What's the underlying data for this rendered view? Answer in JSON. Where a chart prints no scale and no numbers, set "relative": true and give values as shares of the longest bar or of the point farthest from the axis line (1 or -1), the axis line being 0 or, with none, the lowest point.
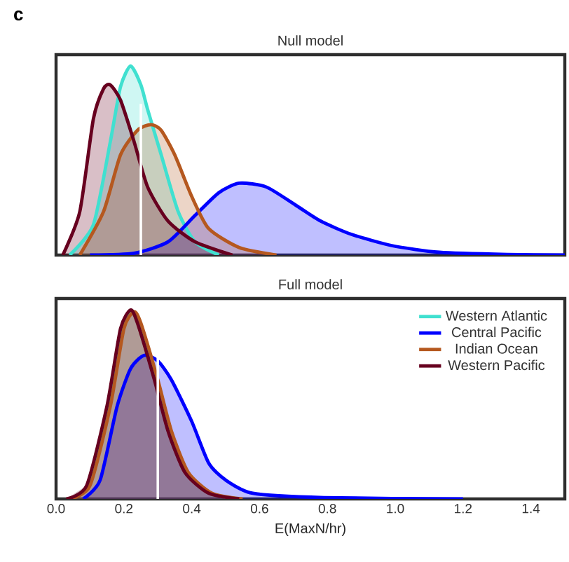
{
  "chart_data": [
    {
      "type": "area",
      "title": "Null model",
      "annotations": [
        "c"
      ],
      "relative": true,
      "xlim": [
        0,
        1.5
      ],
      "tick_labels": false,
      "ref_lines": [
        {
          "axis": "x",
          "value": 0.25,
          "color": "#ffffff"
        }
      ],
      "series": [
        {
          "color": "#40e0d0",
          "x": [
            0.04,
            0.11,
            0.16,
            0.19,
            0.22,
            0.25,
            0.27,
            0.31,
            0.36,
            0.41,
            0.48
          ],
          "values": [
            0,
            0.16,
            0.6,
            0.89,
            1.0,
            0.9,
            0.77,
            0.53,
            0.23,
            0.07,
            0
          ]
        },
        {
          "color": "#0000ff",
          "x": [
            0.1,
            0.23,
            0.33,
            0.41,
            0.48,
            0.54,
            0.62,
            0.71,
            0.78,
            0.87,
            0.99,
            1.13,
            1.33,
            1.5
          ],
          "values": [
            0,
            0.01,
            0.07,
            0.21,
            0.33,
            0.38,
            0.36,
            0.26,
            0.18,
            0.11,
            0.05,
            0.015,
            0.003,
            0
          ]
        },
        {
          "color": "#b5581f",
          "x": [
            0.07,
            0.14,
            0.19,
            0.24,
            0.28,
            0.31,
            0.35,
            0.4,
            0.45,
            0.54,
            0.65
          ],
          "values": [
            0,
            0.23,
            0.53,
            0.66,
            0.69,
            0.66,
            0.53,
            0.31,
            0.14,
            0.04,
            0
          ]
        },
        {
          "color": "#67001f",
          "x": [
            0.02,
            0.07,
            0.11,
            0.14,
            0.16,
            0.19,
            0.23,
            0.27,
            0.33,
            0.41,
            0.52
          ],
          "values": [
            0,
            0.23,
            0.72,
            0.88,
            0.9,
            0.82,
            0.6,
            0.36,
            0.18,
            0.07,
            0
          ]
        }
      ]
    },
    {
      "type": "area",
      "title": "Full model",
      "xlabel": "E(MaxN/hr)",
      "relative": true,
      "xlim": [
        0,
        1.5
      ],
      "xticks": [
        {
          "value": 0,
          "label": "0.0"
        },
        0.2,
        0.4,
        0.6,
        0.8,
        {
          "value": 1,
          "label": "1.0"
        },
        1.2,
        1.4
      ],
      "tick_labels": "x",
      "legend": "top right",
      "ref_lines": [
        {
          "axis": "x",
          "value": 0.3,
          "color": "#ffffff"
        }
      ],
      "series": [
        {
          "name": "Western Atlantic",
          "color": "#40e0d0",
          "x": [
            0.035,
            0.095,
            0.155,
            0.195,
            0.225,
            0.245,
            0.295,
            0.335,
            0.385,
            0.455,
            0.545
          ],
          "values": [
            0,
            0.07,
            0.49,
            0.9,
            0.99,
            0.92,
            0.63,
            0.36,
            0.14,
            0.03,
            0
          ]
        },
        {
          "name": "Central Pacific",
          "color": "#0000ff",
          "x": [
            0.08,
            0.13,
            0.18,
            0.22,
            0.26,
            0.3,
            0.34,
            0.4,
            0.45,
            0.5,
            0.58,
            0.79,
            1.2
          ],
          "values": [
            0,
            0.1,
            0.49,
            0.69,
            0.76,
            0.73,
            0.63,
            0.41,
            0.19,
            0.1,
            0.03,
            0.007,
            0
          ]
        },
        {
          "name": "Indian Ocean",
          "color": "#b5581f",
          "x": [
            0.04,
            0.1,
            0.16,
            0.2,
            0.23,
            0.25,
            0.3,
            0.34,
            0.39,
            0.46,
            0.55
          ],
          "values": [
            0,
            0.07,
            0.49,
            0.9,
            0.99,
            0.93,
            0.63,
            0.36,
            0.14,
            0.03,
            0
          ]
        },
        {
          "name": "Western Pacific",
          "color": "#67001f",
          "x": [
            0.03,
            0.09,
            0.15,
            0.19,
            0.22,
            0.24,
            0.29,
            0.33,
            0.38,
            0.45,
            0.54
          ],
          "values": [
            0,
            0.07,
            0.49,
            0.9,
            1.0,
            0.93,
            0.63,
            0.36,
            0.14,
            0.03,
            0
          ]
        }
      ]
    }
  ]
}
